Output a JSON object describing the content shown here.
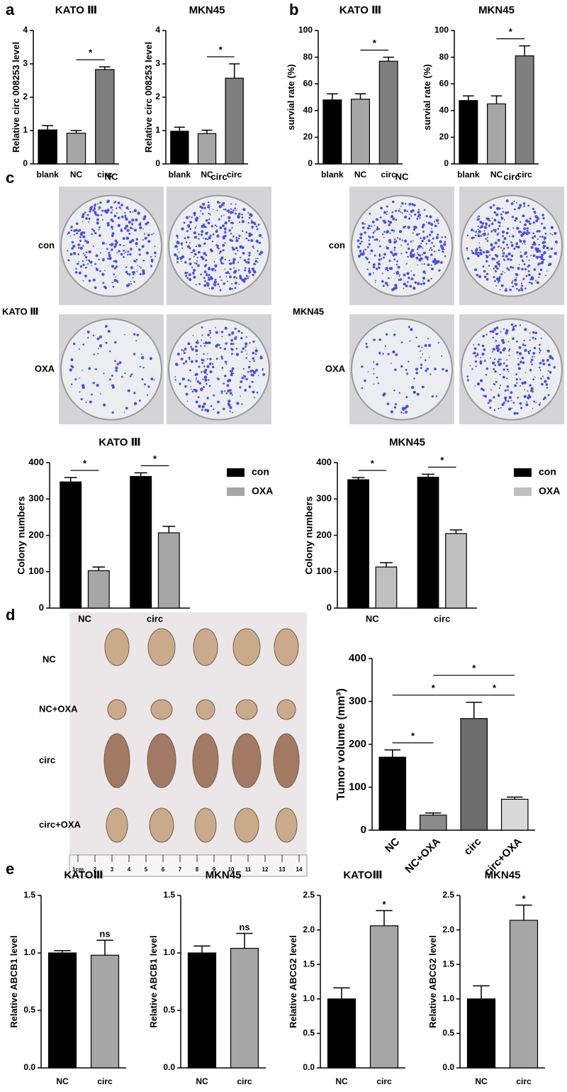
{
  "panel_labels": [
    "a",
    "b",
    "c",
    "d",
    "e"
  ],
  "colony_plates": [
    {
      "cell_line": "KATO Ⅲ",
      "columns": [
        "NC",
        "circ"
      ],
      "rows": [
        "con",
        "OXA"
      ]
    },
    {
      "cell_line": "MKN45",
      "columns": [
        "NC",
        "circ"
      ],
      "rows": [
        "con",
        "OXA"
      ]
    }
  ],
  "tumor_photo": {
    "rows": [
      "NC",
      "NC+OXA",
      "circ",
      "circ+OXA"
    ],
    "ruler": [
      "1cm",
      "2",
      "3",
      "4",
      "5",
      "6",
      "7",
      "8",
      "9",
      "10",
      "11",
      "12",
      "13",
      "14"
    ]
  },
  "chart_data": [
    {
      "type": "bar",
      "title": "KATO Ⅲ",
      "ylabel": "Relative circ 008253 level",
      "categories": [
        "blank",
        "NC",
        "circ"
      ],
      "values": [
        1.02,
        0.92,
        2.83
      ],
      "errors": [
        0.13,
        0.08,
        0.08
      ],
      "colors": [
        "#000000",
        "#a6a6a6",
        "#7f7f7f"
      ],
      "ylim": [
        0,
        4
      ],
      "yticks": [
        0,
        1,
        2,
        3,
        4
      ],
      "significance": [
        {
          "label": "*",
          "between": [
            "NC",
            "circ"
          ]
        }
      ]
    },
    {
      "type": "bar",
      "title": "MKN45",
      "ylabel": "Relative circ 008253 level",
      "categories": [
        "blank",
        "NC",
        "circ"
      ],
      "values": [
        0.98,
        0.91,
        2.57
      ],
      "errors": [
        0.12,
        0.1,
        0.43
      ],
      "colors": [
        "#000000",
        "#a6a6a6",
        "#7f7f7f"
      ],
      "ylim": [
        0,
        4
      ],
      "yticks": [
        0,
        1,
        2,
        3,
        4
      ],
      "significance": [
        {
          "label": "*",
          "between": [
            "NC",
            "circ"
          ]
        }
      ]
    },
    {
      "type": "bar",
      "title": "KATO Ⅲ",
      "ylabel": "survial rate (%)",
      "categories": [
        "blank",
        "NC",
        "circ"
      ],
      "values": [
        48,
        48.5,
        77
      ],
      "errors": [
        4.5,
        4,
        3
      ],
      "colors": [
        "#000000",
        "#a6a6a6",
        "#7f7f7f"
      ],
      "ylim": [
        0,
        100
      ],
      "yticks": [
        0,
        20,
        40,
        60,
        80,
        100
      ],
      "significance": [
        {
          "label": "*",
          "between": [
            "NC",
            "circ"
          ]
        }
      ]
    },
    {
      "type": "bar",
      "title": "MKN45",
      "ylabel": "survial rate (%)",
      "categories": [
        "blank",
        "NC",
        "circ"
      ],
      "values": [
        47.5,
        45,
        81
      ],
      "errors": [
        3.5,
        6,
        7.5
      ],
      "colors": [
        "#000000",
        "#a6a6a6",
        "#7f7f7f"
      ],
      "ylim": [
        0,
        100
      ],
      "yticks": [
        0,
        20,
        40,
        60,
        80,
        100
      ],
      "significance": [
        {
          "label": "*",
          "between": [
            "NC",
            "circ"
          ]
        }
      ]
    },
    {
      "type": "grouped_bar",
      "title": "KATO Ⅲ",
      "ylabel": "Colony numbers",
      "categories": [
        "NC",
        "circ"
      ],
      "series": [
        {
          "name": "con",
          "color": "#000000",
          "values": [
            347,
            362
          ],
          "errors": [
            12,
            10
          ]
        },
        {
          "name": "OXA",
          "color": "#a6a6a6",
          "values": [
            103,
            207
          ],
          "errors": [
            10,
            18
          ]
        }
      ],
      "ylim": [
        0,
        400
      ],
      "yticks": [
        0,
        100,
        200,
        300,
        400
      ],
      "legend": "right",
      "significance": [
        {
          "label": "*",
          "category": "NC"
        },
        {
          "label": "*",
          "category": "circ"
        }
      ]
    },
    {
      "type": "grouped_bar",
      "title": "MKN45",
      "ylabel": "Colony numbers",
      "categories": [
        "NC",
        "circ"
      ],
      "series": [
        {
          "name": "con",
          "color": "#000000",
          "values": [
            353,
            360
          ],
          "errors": [
            6,
            8
          ]
        },
        {
          "name": "OXA",
          "color": "#bfbfbf",
          "values": [
            113,
            205
          ],
          "errors": [
            12,
            10
          ]
        }
      ],
      "ylim": [
        0,
        400
      ],
      "yticks": [
        0,
        100,
        200,
        300,
        400
      ],
      "legend": "right",
      "significance": [
        {
          "label": "*",
          "category": "NC"
        },
        {
          "label": "*",
          "category": "circ"
        }
      ]
    },
    {
      "type": "bar",
      "ylabel": "Tumor volume (mm³)",
      "categories": [
        "NC",
        "NC+OXA",
        "circ",
        "circ+OXA"
      ],
      "values": [
        170,
        35,
        260,
        72
      ],
      "errors": [
        17,
        5,
        38,
        5
      ],
      "colors": [
        "#000000",
        "#8c8c8c",
        "#6e6e6e",
        "#d9d9d9"
      ],
      "ylim": [
        0,
        400
      ],
      "yticks": [
        0,
        100,
        200,
        300,
        400
      ],
      "rotate_x_labels": true,
      "significance": [
        {
          "label": "*",
          "between": [
            "NC",
            "NC+OXA"
          ]
        },
        {
          "label": "*",
          "between": [
            "NC",
            "circ"
          ]
        },
        {
          "label": "*",
          "between": [
            "circ",
            "circ+OXA"
          ]
        },
        {
          "label": "*",
          "between": [
            "NC+OXA",
            "circ+OXA"
          ]
        }
      ]
    },
    {
      "type": "bar",
      "title": "KATOⅢ",
      "ylabel": "Relative ABCB1 level",
      "categories": [
        "NC",
        "circ"
      ],
      "values": [
        1.0,
        0.98
      ],
      "errors": [
        0.02,
        0.13
      ],
      "colors": [
        "#000000",
        "#a6a6a6"
      ],
      "ylim": [
        0,
        1.5
      ],
      "yticks": [
        {
          "value": 0,
          "label": "0.0"
        },
        0.5,
        {
          "value": 1,
          "label": "1.0"
        },
        1.5
      ],
      "significance": [
        {
          "label": "ns",
          "over": "circ"
        }
      ]
    },
    {
      "type": "bar",
      "title": "MKN45",
      "ylabel": "Relative ABCB1 level",
      "categories": [
        "NC",
        "circ"
      ],
      "values": [
        1.0,
        1.04
      ],
      "errors": [
        0.06,
        0.13
      ],
      "colors": [
        "#000000",
        "#a6a6a6"
      ],
      "ylim": [
        0,
        1.5
      ],
      "yticks": [
        {
          "value": 0,
          "label": "0.0"
        },
        0.5,
        {
          "value": 1,
          "label": "1.0"
        },
        1.5
      ],
      "significance": [
        {
          "label": "ns",
          "over": "circ"
        }
      ]
    },
    {
      "type": "bar",
      "title": "KATOⅢ",
      "ylabel": "Relative ABCG2 level",
      "categories": [
        "NC",
        "circ"
      ],
      "values": [
        1.0,
        2.06
      ],
      "errors": [
        0.16,
        0.22
      ],
      "colors": [
        "#000000",
        "#a6a6a6"
      ],
      "ylim": [
        0,
        2.5
      ],
      "yticks": [
        {
          "value": 0,
          "label": "0.0"
        },
        0.5,
        {
          "value": 1,
          "label": "1.0"
        },
        1.5,
        {
          "value": 2,
          "label": "2.0"
        },
        2.5
      ],
      "significance": [
        {
          "label": "*",
          "over": "circ"
        }
      ]
    },
    {
      "type": "bar",
      "title": "MKN45",
      "ylabel": "Relative ABCG2 level",
      "categories": [
        "NC",
        "circ"
      ],
      "values": [
        1.0,
        2.14
      ],
      "errors": [
        0.19,
        0.22
      ],
      "colors": [
        "#000000",
        "#a6a6a6"
      ],
      "ylim": [
        0,
        2.5
      ],
      "yticks": [
        {
          "value": 0,
          "label": "0.0"
        },
        0.5,
        {
          "value": 1,
          "label": "1.0"
        },
        1.5,
        {
          "value": 2,
          "label": "2.0"
        },
        2.5
      ],
      "significance": [
        {
          "label": "*",
          "over": "circ"
        }
      ]
    }
  ]
}
